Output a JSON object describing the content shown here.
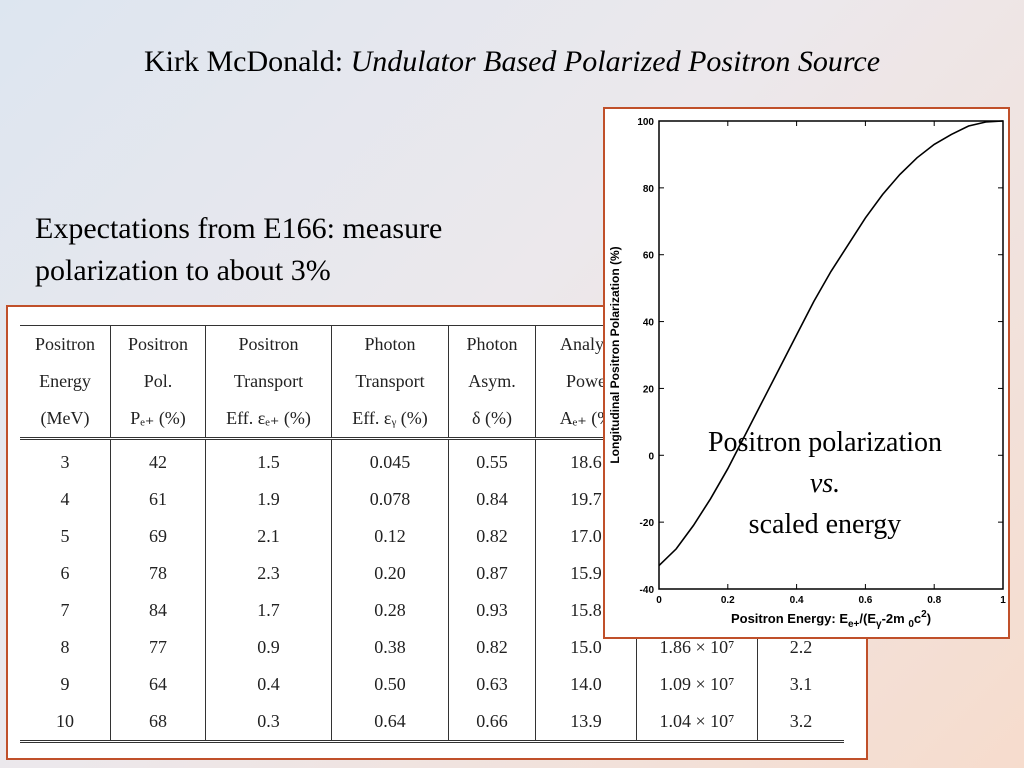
{
  "slide": {
    "title_prefix": "Kirk McDonald: ",
    "title_italic": "Undulator Based Polarized Positron Source",
    "subtitle_line1": "Expectations from E166: measure",
    "subtitle_line2": "polarization to about 3%"
  },
  "table": {
    "headers": [
      [
        "Positron",
        "Energy",
        "(MeV)"
      ],
      [
        "Positron",
        "Pol.",
        "Pₑ₊ (%)"
      ],
      [
        "Positron",
        "Transport",
        "Eff. εₑ₊ (%)"
      ],
      [
        "Photon",
        "Transport",
        "Eff. εᵧ (%)"
      ],
      [
        "Photon",
        "Asym.",
        "δ (%)"
      ],
      [
        "Analyz",
        "Powe",
        "Aₑ₊ (%"
      ],
      [
        "",
        "",
        ""
      ],
      [
        "",
        "",
        ""
      ]
    ],
    "rows": [
      [
        "3",
        "42",
        "1.5",
        "0.045",
        "0.55",
        "18.6",
        "",
        ""
      ],
      [
        "4",
        "61",
        "1.9",
        "0.078",
        "0.84",
        "19.7",
        "",
        ""
      ],
      [
        "5",
        "69",
        "2.1",
        "0.12",
        "0.82",
        "17.0",
        "",
        ""
      ],
      [
        "6",
        "78",
        "2.3",
        "0.20",
        "0.87",
        "15.9",
        "",
        ""
      ],
      [
        "7",
        "84",
        "1.7",
        "0.28",
        "0.93",
        "15.8",
        "",
        ""
      ],
      [
        "8",
        "77",
        "0.9",
        "0.38",
        "0.82",
        "15.0",
        "1.86 × 10⁷",
        "2.2"
      ],
      [
        "9",
        "64",
        "0.4",
        "0.50",
        "0.63",
        "14.0",
        "1.09 × 10⁷",
        "3.1"
      ],
      [
        "10",
        "68",
        "0.3",
        "0.64",
        "0.66",
        "13.9",
        "1.04 × 10⁷",
        "3.2"
      ]
    ]
  },
  "chart_data": {
    "type": "line",
    "title": "",
    "xlabel": "Positron Energy: Ee+/(Eγ-2m0c2)",
    "xlabel_parts": {
      "a": "Positron Energy: E",
      "b": "e+",
      "c": "/(E",
      "d": "γ",
      "e": "-2m ",
      "f": "0",
      "g": "c",
      "h": "2",
      "i": ")"
    },
    "ylabel": "Longitudinal Positron Polarization (%)",
    "xlim": [
      0,
      1
    ],
    "ylim": [
      -40,
      100
    ],
    "xticks": [
      "0",
      "0.2",
      "0.4",
      "0.6",
      "0.8",
      "1"
    ],
    "xtick_values": [
      0,
      0.2,
      0.4,
      0.6,
      0.8,
      1
    ],
    "yticks": [
      "-40",
      "-20",
      "0",
      "20",
      "40",
      "60",
      "80",
      "100"
    ],
    "ytick_values": [
      -40,
      -20,
      0,
      20,
      40,
      60,
      80,
      100
    ],
    "grid": false,
    "series": [
      {
        "x": [
          0,
          0.05,
          0.1,
          0.15,
          0.2,
          0.25,
          0.3,
          0.35,
          0.4,
          0.45,
          0.5,
          0.55,
          0.6,
          0.65,
          0.7,
          0.75,
          0.8,
          0.85,
          0.9,
          0.95,
          1.0
        ],
        "y": [
          -33,
          -28,
          -21,
          -13,
          -4,
          6,
          16,
          26,
          36,
          46,
          55,
          63,
          71,
          78,
          84,
          89,
          93,
          96,
          98.5,
          99.7,
          100
        ]
      }
    ]
  },
  "overlay": {
    "line1": "Positron polarization",
    "line2": "vs.",
    "line3": "scaled energy"
  }
}
